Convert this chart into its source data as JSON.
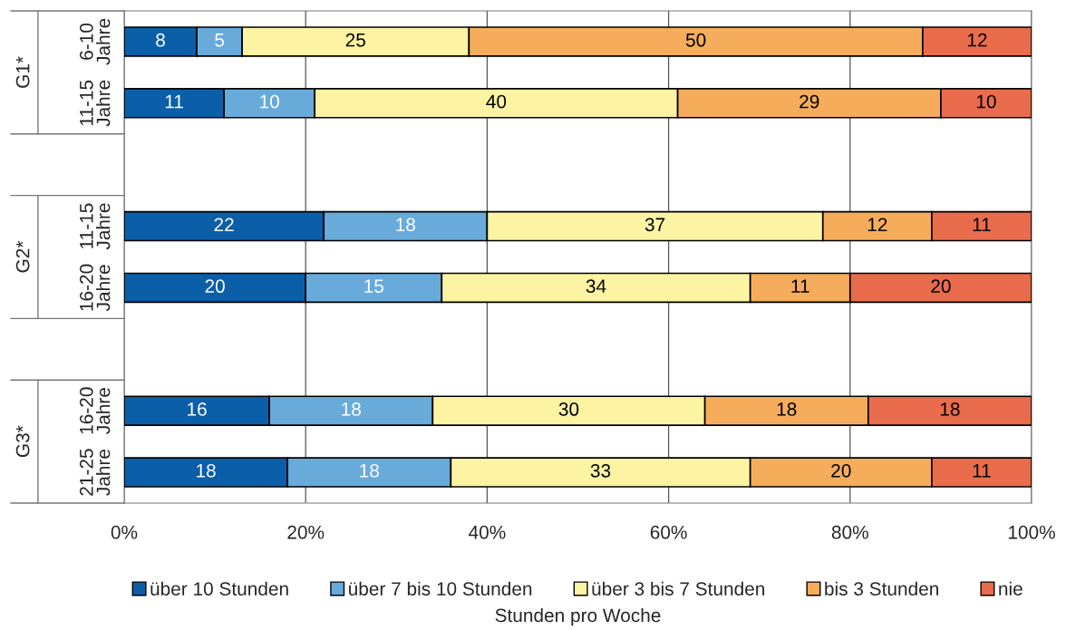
{
  "chart_data": {
    "type": "bar",
    "orientation": "horizontal",
    "stacked": true,
    "xlabel": "Stunden pro Woche",
    "categories": [
      "6-10 Jahre",
      "11-15 Jahre",
      null,
      "11-15 Jahre",
      "16-20 Jahre",
      null,
      "16-20 Jahre",
      "21-25 Jahre"
    ],
    "annotations": [
      "G1*",
      "G2*",
      "G3*"
    ],
    "series": [
      {
        "name": "über 10 Stunden",
        "color": "#0b5ea8",
        "values": [
          8,
          11,
          null,
          22,
          20,
          null,
          16,
          18
        ]
      },
      {
        "name": "über 7 bis 10 Stunden",
        "color": "#68abdb",
        "values": [
          5,
          10,
          null,
          18,
          15,
          null,
          18,
          18
        ]
      },
      {
        "name": "über 3 bis 7 Stunden",
        "color": "#fdf4a3",
        "values": [
          25,
          40,
          null,
          37,
          34,
          null,
          30,
          33
        ]
      },
      {
        "name": "bis 3 Stunden",
        "color": "#f5ad5c",
        "values": [
          50,
          29,
          null,
          12,
          11,
          null,
          18,
          20
        ]
      },
      {
        "name": "nie",
        "color": "#e96c4c",
        "values": [
          12,
          10,
          null,
          11,
          20,
          null,
          18,
          11
        ]
      }
    ],
    "xlim": [
      0,
      100
    ],
    "xticks": [
      {
        "value": 0,
        "label": "0%"
      },
      {
        "value": 20,
        "label": "20%"
      },
      {
        "value": 40,
        "label": "40%"
      },
      {
        "value": 60,
        "label": "60%"
      },
      {
        "value": 80,
        "label": "80%"
      },
      {
        "value": 100,
        "label": "100%"
      }
    ],
    "data_labels": true,
    "grid": "x",
    "legend": "bottom"
  }
}
